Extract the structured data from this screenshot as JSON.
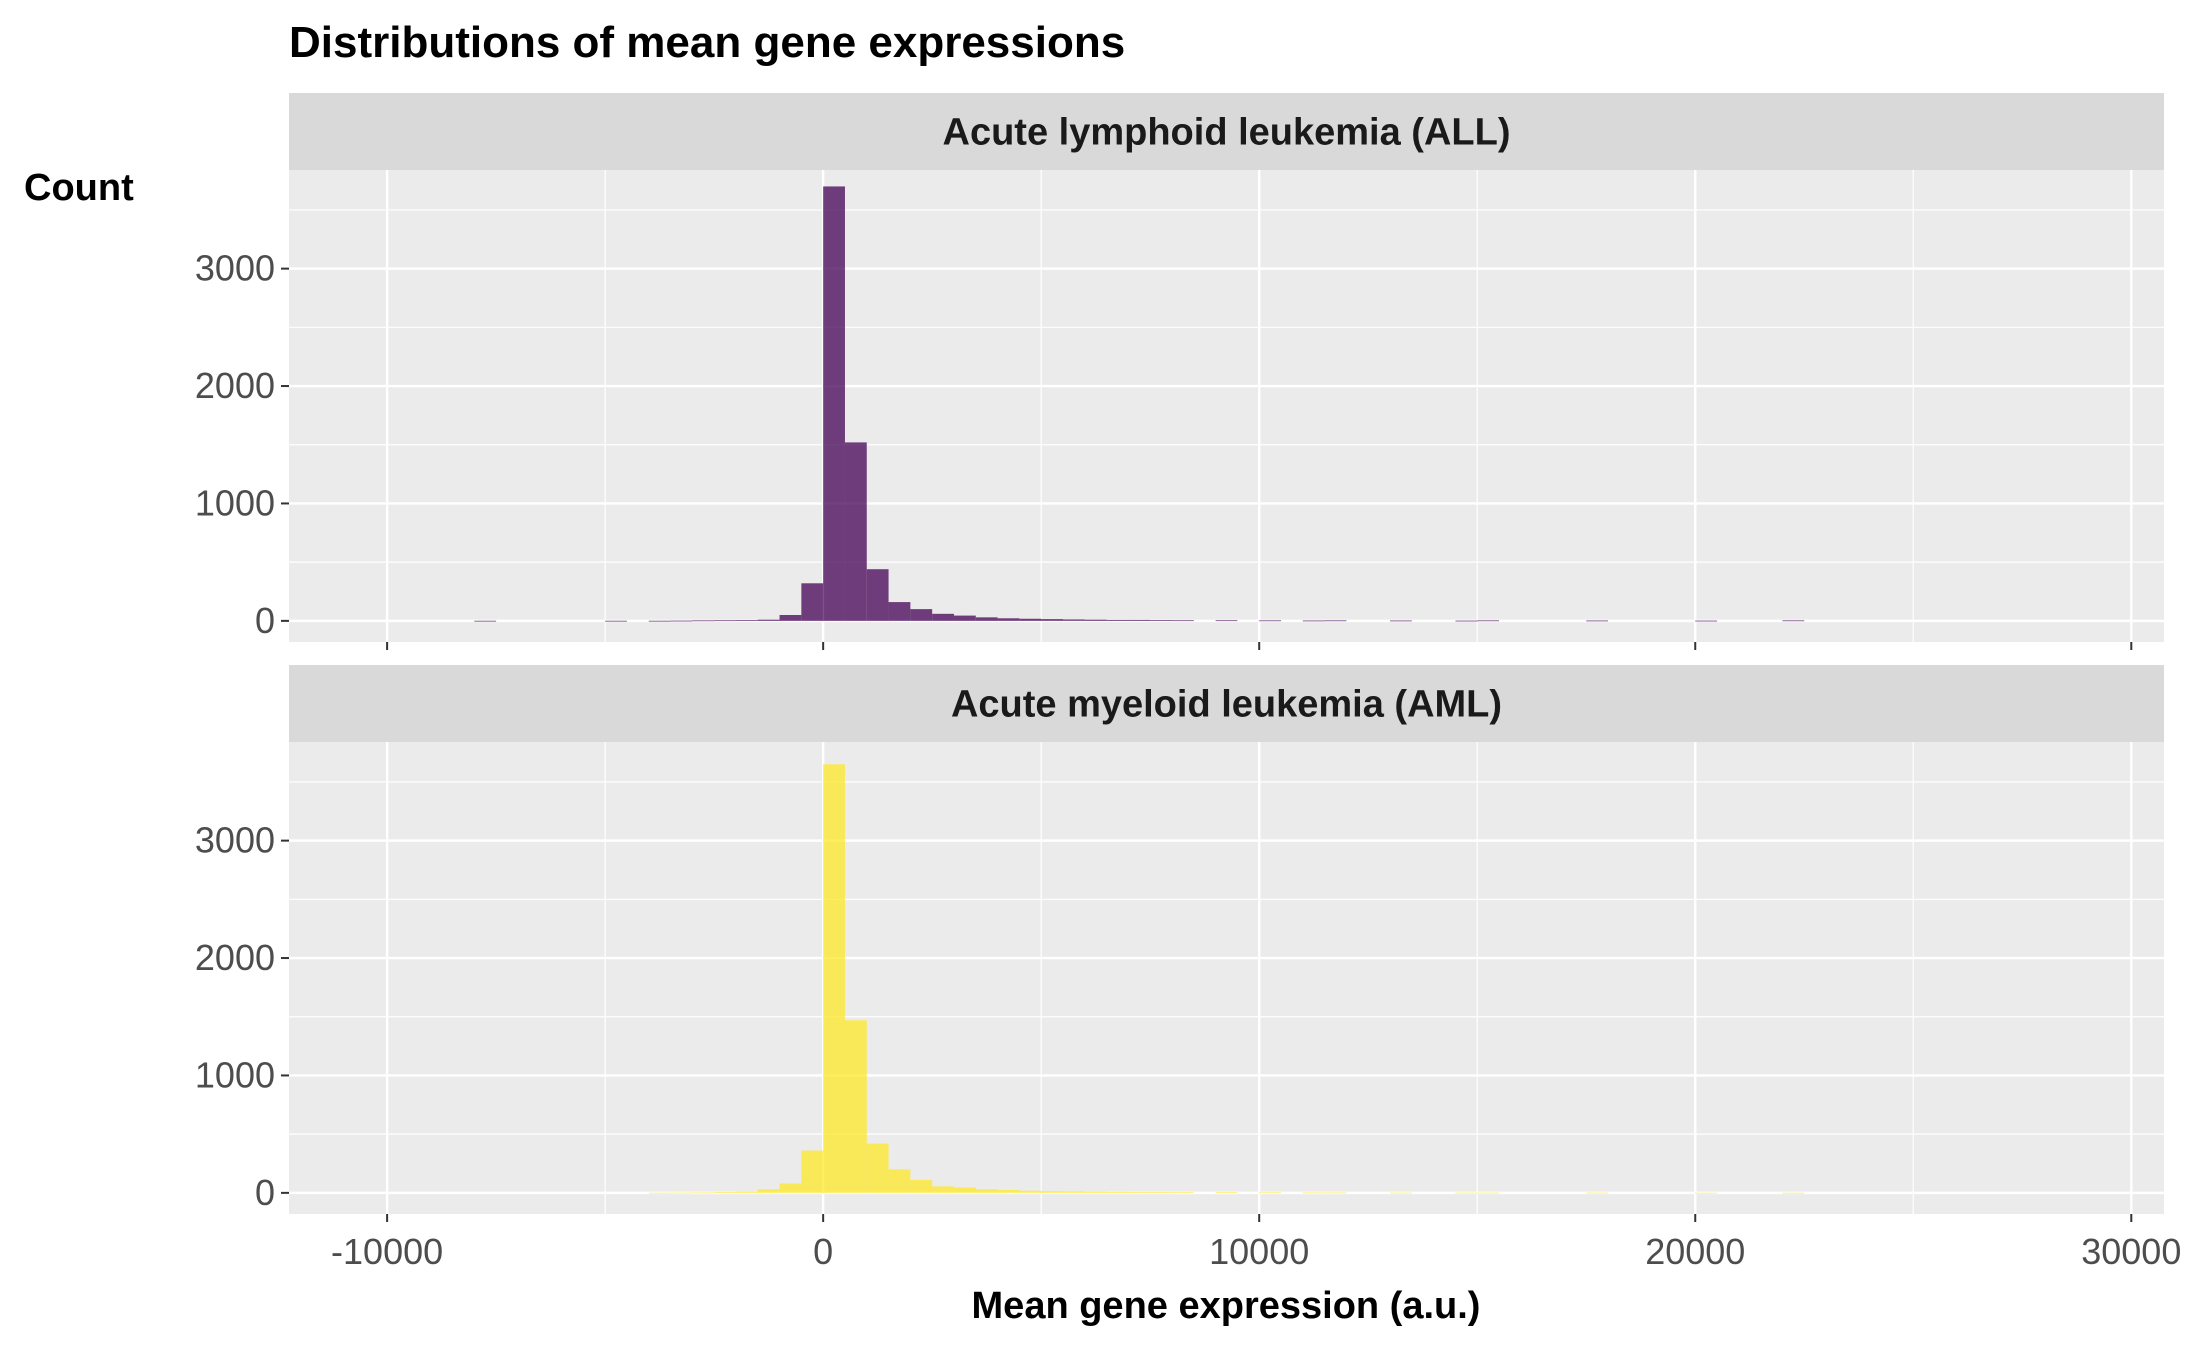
{
  "chart_data": {
    "type": "bar",
    "title": "Distributions of mean gene expressions",
    "xlabel": "Mean gene expression (a.u.)",
    "ylabel": "Count",
    "xlim": [
      -12250,
      30750
    ],
    "ylim": [
      -180,
      3840
    ],
    "x_ticks": [
      -10000,
      0,
      10000,
      20000,
      30000
    ],
    "x_tick_labels": [
      "-10000",
      "0",
      "10000",
      "20000",
      "30000"
    ],
    "y_ticks": [
      0,
      1000,
      2000,
      3000
    ],
    "y_tick_labels": [
      "0",
      "1000",
      "2000",
      "3000"
    ],
    "grid": true,
    "bin_width": 500,
    "bin_starts": [
      -8000,
      -5000,
      -4000,
      -3500,
      -3000,
      -2500,
      -2000,
      -1500,
      -1000,
      -500,
      0,
      500,
      1000,
      1500,
      2000,
      2500,
      3000,
      3500,
      4000,
      4500,
      5000,
      5500,
      6000,
      6500,
      7000,
      7500,
      8000,
      9000,
      10000,
      11000,
      11500,
      13000,
      14500,
      15000,
      17500,
      20000,
      22000
    ],
    "series": [
      {
        "name": "Acute lymphoid leukemia (ALL)",
        "color": "#440154",
        "values": [
          1,
          1,
          1,
          2,
          4,
          5,
          6,
          10,
          50,
          320,
          3700,
          1520,
          440,
          160,
          100,
          60,
          45,
          30,
          22,
          18,
          15,
          12,
          10,
          8,
          8,
          6,
          5,
          5,
          4,
          3,
          4,
          3,
          2,
          4,
          3,
          2,
          4
        ]
      },
      {
        "name": "Acute myeloid leukemia (AML)",
        "color": "#FDE725",
        "values": [
          0,
          0,
          1,
          2,
          3,
          6,
          10,
          30,
          80,
          360,
          3650,
          1470,
          420,
          200,
          110,
          55,
          45,
          30,
          24,
          18,
          14,
          12,
          10,
          8,
          7,
          6,
          5,
          5,
          4,
          3,
          3,
          2,
          2,
          2,
          2,
          1,
          1
        ]
      }
    ]
  }
}
